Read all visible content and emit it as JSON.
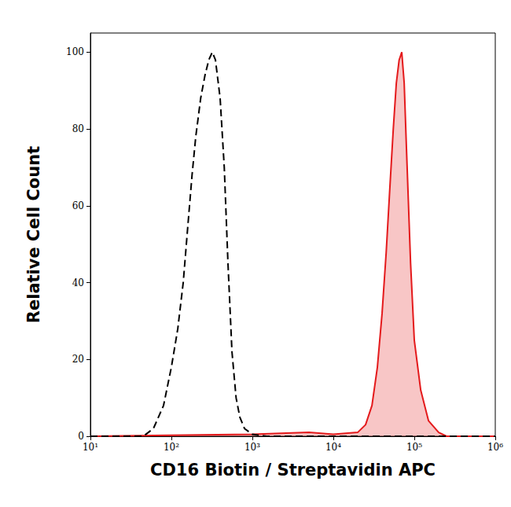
{
  "chart_data": {
    "type": "line",
    "x_label": "CD16 Biotin / Streptavidin APC",
    "y_label": "Relative Cell Count",
    "log": "x",
    "grid": false,
    "xlim": [
      10,
      1000000
    ],
    "xticks": [
      {
        "value": 10,
        "label": "10¹"
      },
      {
        "value": 100,
        "label": "10²"
      },
      {
        "value": 1000,
        "label": "10³"
      },
      {
        "value": 10000,
        "label": "10⁴"
      },
      {
        "value": 100000,
        "label": "10⁵"
      },
      {
        "value": 1000000,
        "label": "10⁶"
      }
    ],
    "ylim": [
      0,
      105
    ],
    "yticks": [
      0,
      20,
      40,
      60,
      80,
      100
    ],
    "series": [
      {
        "type": "line",
        "color": "#000000",
        "line_style": "dashed",
        "x": [
          10,
          45,
          60,
          80,
          100,
          120,
          140,
          160,
          180,
          200,
          230,
          260,
          290,
          320,
          350,
          400,
          450,
          500,
          560,
          630,
          700,
          800,
          1000,
          1500,
          1000000
        ],
        "values": [
          0,
          0,
          2,
          8,
          18,
          28,
          40,
          55,
          68,
          78,
          88,
          94,
          98,
          100,
          98,
          88,
          70,
          45,
          22,
          10,
          5,
          2,
          0.5,
          0,
          0
        ]
      },
      {
        "type": "area",
        "color": "#e41a1c",
        "line_style": "solid",
        "x": [
          10,
          1000,
          5000,
          10000,
          20000,
          25000,
          30000,
          35000,
          40000,
          45000,
          50000,
          55000,
          60000,
          65000,
          70000,
          75000,
          80000,
          90000,
          100000,
          120000,
          150000,
          200000,
          250000,
          1000000
        ],
        "values": [
          0,
          0.5,
          1,
          0.5,
          1,
          3,
          8,
          18,
          32,
          48,
          65,
          80,
          92,
          98,
          100,
          92,
          75,
          45,
          25,
          12,
          4,
          1,
          0,
          0
        ]
      }
    ]
  }
}
